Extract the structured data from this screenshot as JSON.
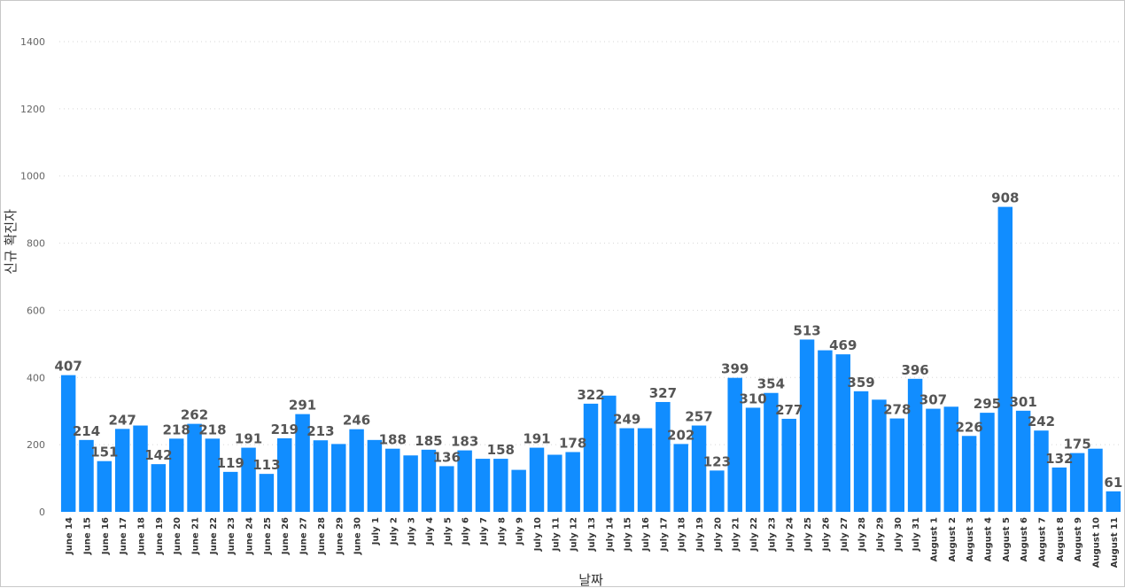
{
  "chart_data": {
    "type": "bar",
    "xlabel": "날짜",
    "ylabel": "신규 확진자",
    "ylim": [
      0,
      1400
    ],
    "yticks": [
      0,
      200,
      400,
      600,
      800,
      1000,
      1200,
      1400
    ],
    "grid": true,
    "bar_color": "#118DFF",
    "categories": [
      "June 14",
      "June 15",
      "June 16",
      "June 17",
      "June 18",
      "June 19",
      "June 20",
      "June 21",
      "June 22",
      "June 23",
      "June 24",
      "June 25",
      "June 26",
      "June 27",
      "June 28",
      "June 29",
      "June 30",
      "July 1",
      "July 2",
      "July 3",
      "July 4",
      "July 5",
      "July 6",
      "July 7",
      "July 8",
      "July 9",
      "July 10",
      "July 11",
      "July 12",
      "July 13",
      "July 14",
      "July 15",
      "July 16",
      "July 17",
      "July 18",
      "July 19",
      "July 20",
      "July 21",
      "July 22",
      "July 23",
      "July 24",
      "July 25",
      "July 26",
      "July 27",
      "July 28",
      "July 29",
      "July 30",
      "July 31",
      "August 1",
      "August 2",
      "August 3",
      "August 4",
      "August 5",
      "August 6",
      "August 7",
      "August 8",
      "August 9",
      "August 10",
      "August 11"
    ],
    "values": [
      407,
      214,
      151,
      247,
      257,
      142,
      218,
      262,
      218,
      119,
      191,
      113,
      219,
      291,
      213,
      202,
      246,
      214,
      188,
      168,
      185,
      136,
      183,
      158,
      158,
      125,
      191,
      170,
      178,
      322,
      346,
      249,
      249,
      327,
      202,
      257,
      123,
      399,
      310,
      354,
      277,
      513,
      481,
      469,
      359,
      334,
      278,
      396,
      307,
      313,
      226,
      295,
      908,
      301,
      242,
      132,
      175,
      188,
      61
    ],
    "data_labels": [
      407,
      214,
      151,
      247,
      null,
      142,
      218,
      262,
      218,
      119,
      191,
      113,
      219,
      291,
      213,
      null,
      246,
      null,
      188,
      null,
      185,
      136,
      183,
      null,
      158,
      null,
      191,
      null,
      178,
      322,
      null,
      249,
      null,
      327,
      202,
      257,
      123,
      399,
      310,
      354,
      277,
      513,
      null,
      469,
      359,
      null,
      278,
      396,
      307,
      null,
      226,
      295,
      908,
      301,
      242,
      132,
      175,
      null,
      61
    ]
  }
}
